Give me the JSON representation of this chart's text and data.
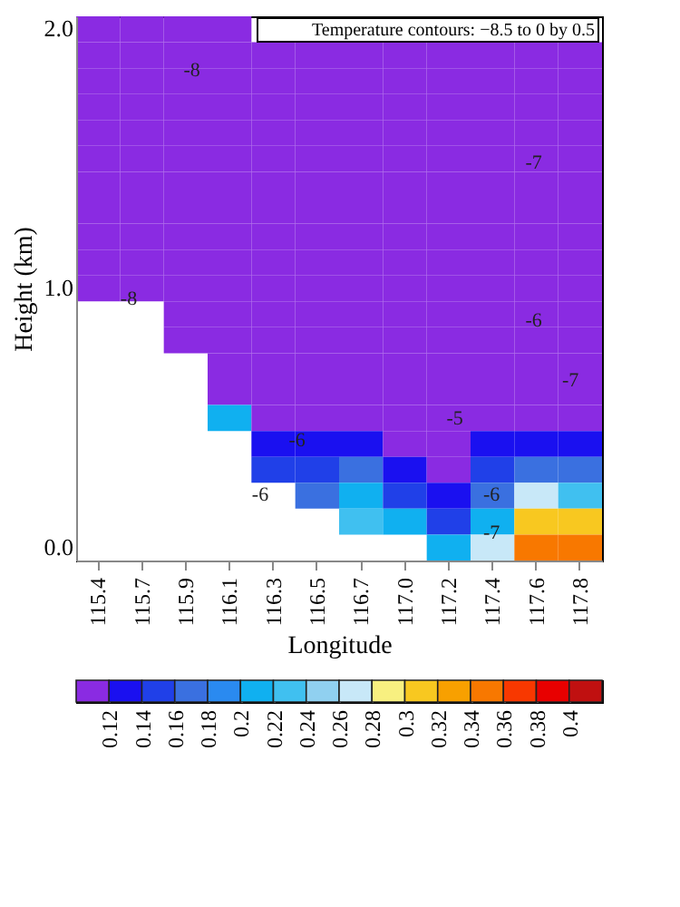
{
  "chart_data": {
    "type": "heatmap",
    "xlabel": "Longitude",
    "ylabel": "Height (km)",
    "categories": [
      "115.4",
      "115.7",
      "115.9",
      "116.1",
      "116.3",
      "116.5",
      "116.7",
      "117.0",
      "117.2",
      "117.4",
      "117.6",
      "117.8"
    ],
    "y_categories": [
      "2.0",
      null,
      null,
      null,
      null,
      null,
      null,
      null,
      null,
      null,
      "1.0",
      null,
      null,
      null,
      null,
      null,
      null,
      null,
      null,
      null,
      "0.0"
    ],
    "cells": [
      [
        0.11,
        0.11,
        0.11,
        0.11,
        null,
        null,
        null,
        null,
        null,
        null,
        null,
        null
      ],
      [
        0.11,
        0.11,
        0.11,
        0.11,
        0.11,
        0.11,
        0.11,
        0.11,
        0.11,
        0.11,
        0.11,
        0.11
      ],
      [
        0.11,
        0.11,
        0.11,
        0.11,
        0.11,
        0.11,
        0.11,
        0.11,
        0.11,
        0.11,
        0.11,
        0.11
      ],
      [
        0.11,
        0.11,
        0.11,
        0.11,
        0.11,
        0.11,
        0.11,
        0.11,
        0.11,
        0.11,
        0.11,
        0.11
      ],
      [
        0.11,
        0.11,
        0.11,
        0.11,
        0.11,
        0.11,
        0.11,
        0.11,
        0.11,
        0.11,
        0.11,
        0.11
      ],
      [
        0.11,
        0.11,
        0.11,
        0.11,
        0.11,
        0.11,
        0.11,
        0.11,
        0.11,
        0.11,
        0.11,
        0.11
      ],
      [
        0.11,
        0.11,
        0.11,
        0.11,
        0.11,
        0.11,
        0.11,
        0.11,
        0.11,
        0.11,
        0.11,
        0.11
      ],
      [
        0.11,
        0.11,
        0.11,
        0.11,
        0.11,
        0.11,
        0.11,
        0.11,
        0.11,
        0.11,
        0.11,
        0.11
      ],
      [
        0.11,
        0.11,
        0.11,
        0.11,
        0.11,
        0.11,
        0.11,
        0.11,
        0.11,
        0.11,
        0.11,
        0.11
      ],
      [
        0.11,
        0.11,
        0.11,
        0.11,
        0.11,
        0.11,
        0.11,
        0.11,
        0.11,
        0.11,
        0.11,
        0.11
      ],
      [
        0.11,
        0.11,
        0.11,
        0.11,
        0.11,
        0.11,
        0.11,
        0.11,
        0.11,
        0.11,
        0.11,
        0.11
      ],
      [
        null,
        null,
        0.11,
        0.11,
        0.11,
        0.11,
        0.11,
        0.11,
        0.11,
        0.11,
        0.11,
        0.11
      ],
      [
        null,
        null,
        0.11,
        0.11,
        0.11,
        0.11,
        0.11,
        0.11,
        0.11,
        0.11,
        0.11,
        0.11
      ],
      [
        null,
        null,
        null,
        0.11,
        0.11,
        0.11,
        0.11,
        0.11,
        0.11,
        0.11,
        0.11,
        0.11
      ],
      [
        null,
        null,
        null,
        0.11,
        0.11,
        0.11,
        0.11,
        0.11,
        0.11,
        0.11,
        0.11,
        0.11
      ],
      [
        null,
        null,
        null,
        0.2,
        0.11,
        0.11,
        0.11,
        0.11,
        0.11,
        0.11,
        0.11,
        0.11
      ],
      [
        null,
        null,
        null,
        null,
        0.13,
        0.12,
        0.13,
        0.11,
        0.11,
        0.12,
        0.13,
        0.13
      ],
      [
        null,
        null,
        null,
        null,
        0.15,
        0.14,
        0.16,
        0.13,
        0.11,
        0.14,
        0.16,
        0.16
      ],
      [
        null,
        null,
        null,
        null,
        null,
        0.17,
        0.2,
        0.15,
        0.13,
        0.17,
        0.26,
        0.22
      ],
      [
        null,
        null,
        null,
        null,
        null,
        null,
        0.22,
        0.2,
        0.15,
        0.2,
        0.31,
        0.31
      ],
      [
        null,
        null,
        null,
        null,
        null,
        null,
        null,
        null,
        0.2,
        0.27,
        0.34,
        0.34
      ]
    ],
    "clim": [
      0.1,
      0.42
    ],
    "cticks": [
      0.12,
      0.14,
      0.16,
      0.18,
      0.2,
      0.22,
      0.24,
      0.26,
      0.28,
      0.3,
      0.32,
      0.34,
      0.36,
      0.38,
      0.4
    ],
    "colors": [
      "#8a2be2",
      "#1a10f0",
      "#2040e8",
      "#3a70e0",
      "#2a8af0",
      "#10b0f0",
      "#40c0f0",
      "#90d0f0",
      "#c8e8f8",
      "#f8f080",
      "#f8c820",
      "#f8a000",
      "#f87800",
      "#f83800",
      "#e80000",
      "#c01010"
    ],
    "annotations": [
      "Temperature contours: −8.5 to 0 by 0.5",
      "-8",
      "-8",
      "-7",
      "-7",
      "-6",
      "-5",
      "-6",
      "-6",
      "-6",
      "-7"
    ]
  }
}
